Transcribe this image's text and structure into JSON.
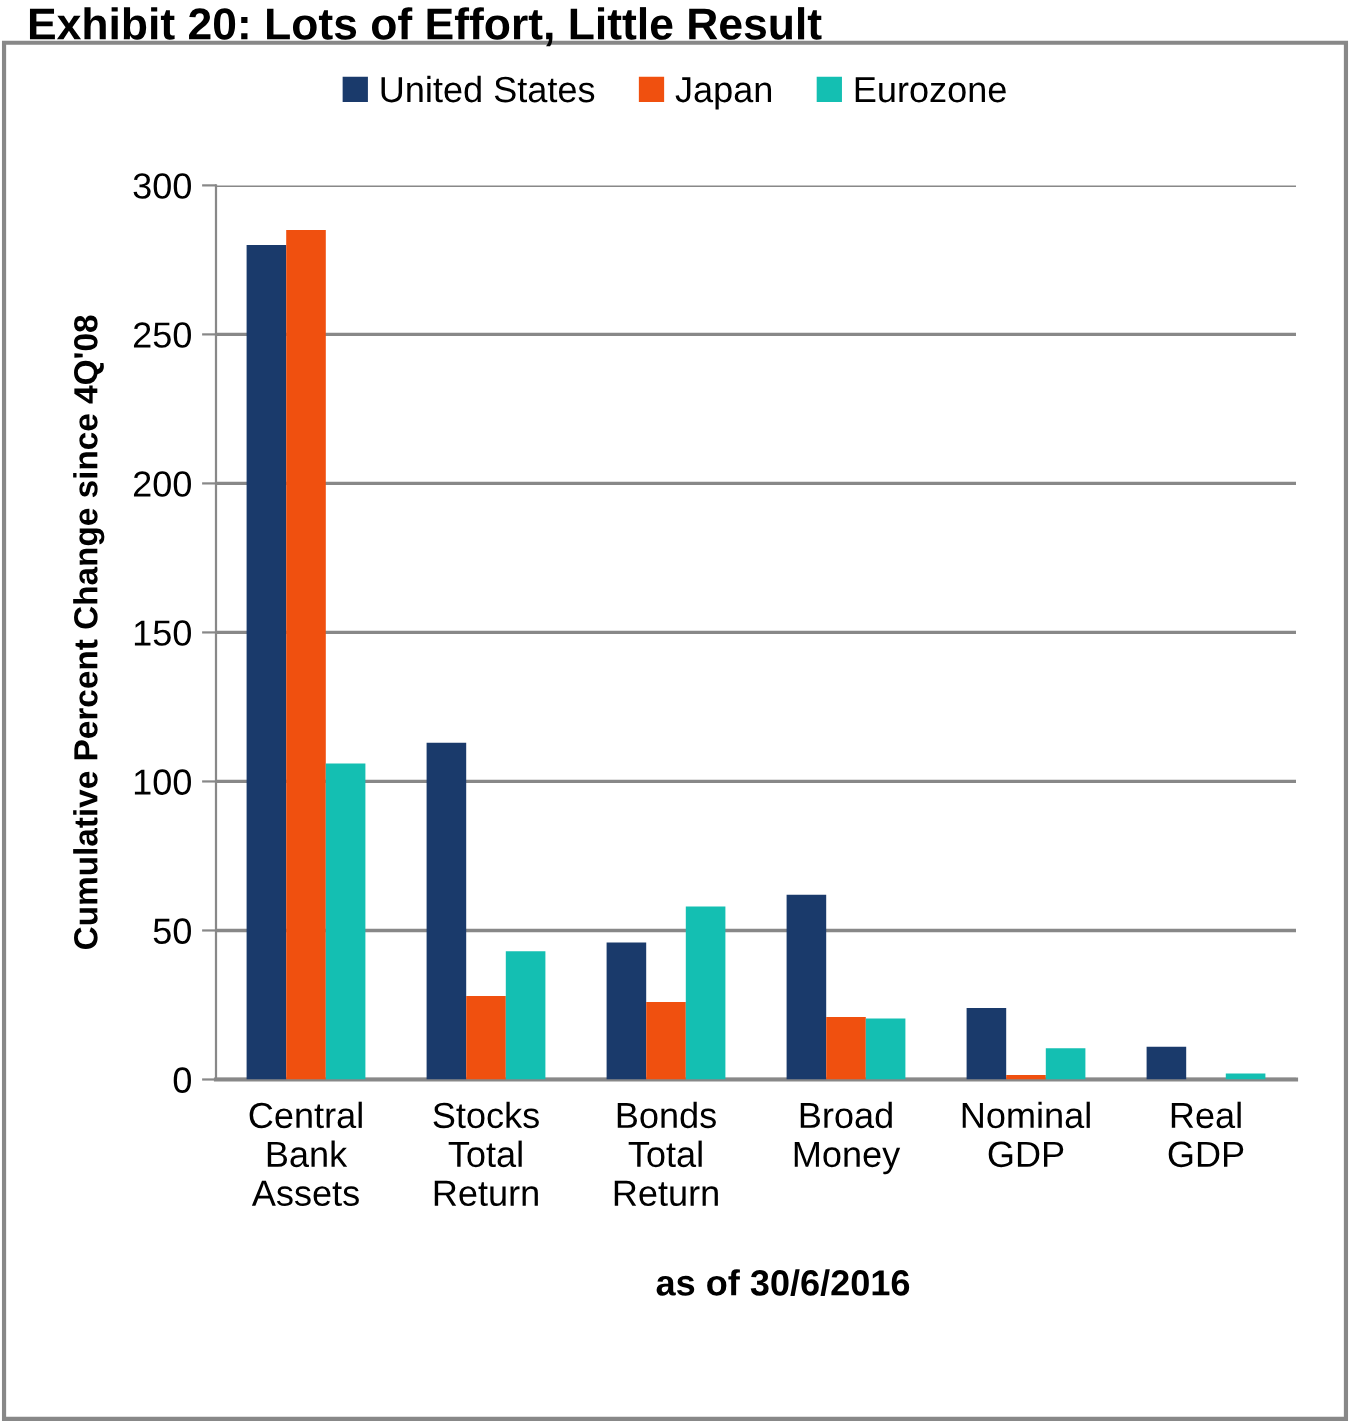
{
  "chart_data": {
    "type": "bar",
    "title": "Exhibit 20: Lots of Effort, Little Result",
    "categories": [
      "Central\nBank\nAssets",
      "Stocks\nTotal\nReturn",
      "Bonds\nTotal\nReturn",
      "Broad\nMoney",
      "Nominal\nGDP",
      "Real\nGDP"
    ],
    "series": [
      {
        "name": "United States",
        "color": "#1a3a6b",
        "values": [
          280,
          113,
          46,
          62,
          24,
          11
        ]
      },
      {
        "name": "Japan",
        "color": "#f0500f",
        "values": [
          285,
          28,
          26,
          21,
          1.5,
          null
        ]
      },
      {
        "name": "Eurozone",
        "color": "#14bfb2",
        "values": [
          106,
          43,
          58,
          20.5,
          10.5,
          2
        ]
      }
    ],
    "ylabel": "Cumulative Percent Change since 4Q'08",
    "ylim": [
      0,
      300
    ],
    "yticks": [
      0,
      50,
      100,
      150,
      200,
      250,
      300
    ],
    "grid": "y",
    "legend": "top",
    "annotations": [
      "as of 30/6/2016"
    ]
  }
}
